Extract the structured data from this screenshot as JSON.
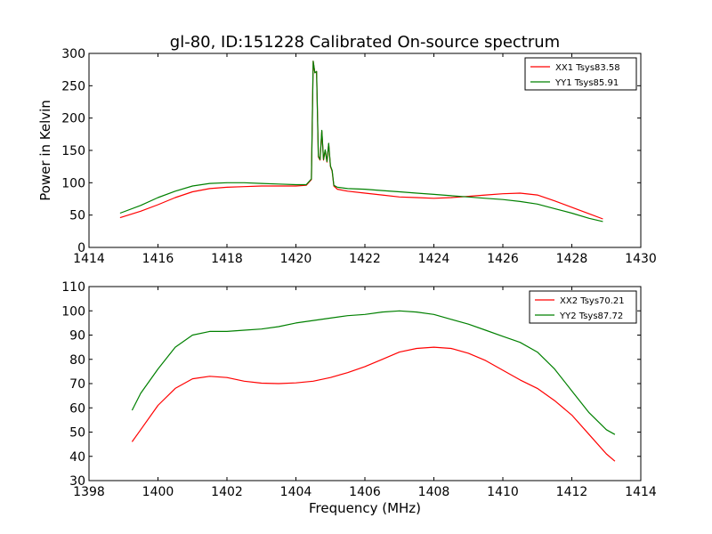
{
  "figure_title": "gl-80, ID:151228 Calibrated On-source spectrum",
  "chart_data": [
    {
      "type": "line",
      "title": "gl-80, ID:151228 Calibrated On-source spectrum",
      "xlabel": "",
      "ylabel": "Power in Kelvin",
      "xlim": [
        1414,
        1430
      ],
      "ylim": [
        0,
        300
      ],
      "xticks": [
        1414,
        1416,
        1418,
        1420,
        1422,
        1424,
        1426,
        1428,
        1430
      ],
      "yticks": [
        0,
        50,
        100,
        150,
        200,
        250,
        300
      ],
      "legend": "top-right",
      "series": [
        {
          "name": "XX1 Tsys83.58",
          "color": "#ff0000",
          "x": [
            1414.9,
            1415.5,
            1416,
            1416.5,
            1417,
            1417.5,
            1418,
            1418.5,
            1419,
            1419.5,
            1420,
            1420.3,
            1420.45,
            1420.5,
            1420.55,
            1420.6,
            1420.65,
            1420.7,
            1420.75,
            1420.8,
            1420.85,
            1420.9,
            1420.95,
            1421.0,
            1421.05,
            1421.1,
            1421.2,
            1421.5,
            1422,
            1422.5,
            1423,
            1423.5,
            1424,
            1424.5,
            1425,
            1425.5,
            1426,
            1426.5,
            1427,
            1427.5,
            1428,
            1428.5,
            1428.9
          ],
          "values": [
            46,
            56,
            66,
            77,
            86,
            91,
            93,
            94,
            95,
            95,
            95,
            96,
            105,
            288,
            270,
            272,
            140,
            135,
            180,
            135,
            150,
            132,
            160,
            125,
            118,
            95,
            90,
            87,
            84,
            81,
            78,
            77,
            76,
            77,
            79,
            81,
            83,
            84,
            81,
            72,
            62,
            52,
            44
          ]
        },
        {
          "name": "YY1 Tsys85.91",
          "color": "#008000",
          "x": [
            1414.9,
            1415.5,
            1416,
            1416.5,
            1417,
            1417.5,
            1418,
            1418.5,
            1419,
            1419.5,
            1420,
            1420.3,
            1420.45,
            1420.5,
            1420.55,
            1420.6,
            1420.65,
            1420.7,
            1420.75,
            1420.8,
            1420.85,
            1420.9,
            1420.95,
            1421.0,
            1421.05,
            1421.1,
            1421.2,
            1421.5,
            1422,
            1422.5,
            1423,
            1423.5,
            1424,
            1424.5,
            1425,
            1425.5,
            1426,
            1426.5,
            1427,
            1427.5,
            1428,
            1428.5,
            1428.9
          ],
          "values": [
            53,
            65,
            77,
            87,
            95,
            99,
            100,
            100,
            99,
            98,
            97,
            97,
            106,
            288,
            270,
            272,
            141,
            136,
            181,
            136,
            151,
            133,
            161,
            126,
            119,
            96,
            93,
            91,
            90,
            88,
            86,
            84,
            82,
            80,
            78,
            76,
            74,
            71,
            67,
            60,
            53,
            45,
            40
          ]
        }
      ]
    },
    {
      "type": "line",
      "title": "",
      "xlabel": "Frequency (MHz)",
      "ylabel": "",
      "xlim": [
        1398,
        1414
      ],
      "ylim": [
        30,
        110
      ],
      "xticks": [
        1398,
        1400,
        1402,
        1404,
        1406,
        1408,
        1410,
        1412,
        1414
      ],
      "yticks": [
        30,
        40,
        50,
        60,
        70,
        80,
        90,
        100,
        110
      ],
      "legend": "top-right",
      "series": [
        {
          "name": "XX2 Tsys70.21",
          "color": "#ff0000",
          "x": [
            1399.25,
            1399.5,
            1400,
            1400.5,
            1401,
            1401.5,
            1402,
            1402.5,
            1403,
            1403.5,
            1404,
            1404.5,
            1405,
            1405.5,
            1406,
            1406.5,
            1407,
            1407.5,
            1408,
            1408.5,
            1409,
            1409.5,
            1410,
            1410.5,
            1411,
            1411.5,
            1412,
            1412.5,
            1413,
            1413.25
          ],
          "values": [
            46,
            51,
            61,
            68,
            72,
            73,
            72.5,
            71,
            70.2,
            70,
            70.3,
            71,
            72.5,
            74.5,
            77,
            80,
            83,
            84.5,
            85,
            84.5,
            82.5,
            79.5,
            75.5,
            71.5,
            68,
            63,
            57,
            49,
            41,
            38
          ]
        },
        {
          "name": "YY2 Tsys87.72",
          "color": "#008000",
          "x": [
            1399.25,
            1399.5,
            1400,
            1400.5,
            1401,
            1401.5,
            1402,
            1402.5,
            1403,
            1403.5,
            1404,
            1404.5,
            1405,
            1405.5,
            1406,
            1406.5,
            1407,
            1407.5,
            1408,
            1408.5,
            1409,
            1409.5,
            1410,
            1410.5,
            1411,
            1411.5,
            1412,
            1412.5,
            1413,
            1413.25
          ],
          "values": [
            59,
            66,
            76,
            85,
            90,
            91.5,
            91.5,
            92,
            92.5,
            93.5,
            95,
            96,
            97,
            98,
            98.5,
            99.5,
            100,
            99.5,
            98.5,
            96.5,
            94.5,
            92,
            89.5,
            87,
            83,
            76,
            67,
            58,
            51,
            49
          ]
        }
      ]
    }
  ]
}
